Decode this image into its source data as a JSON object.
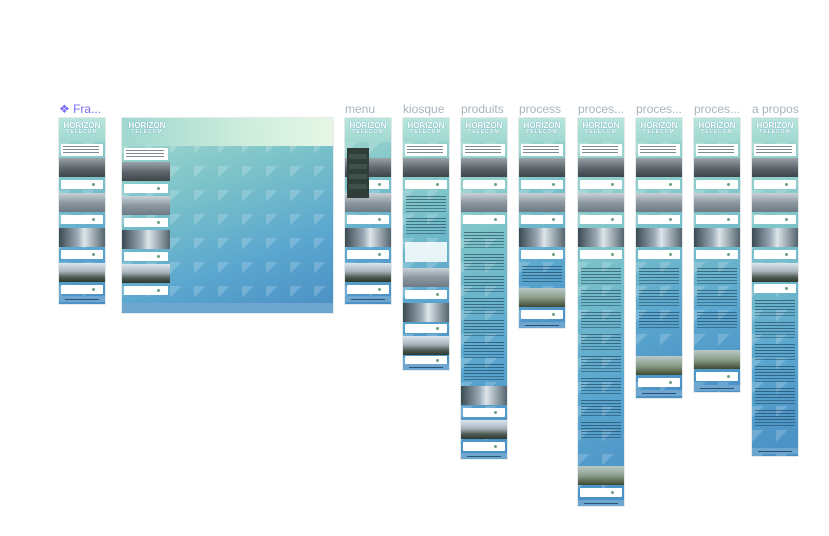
{
  "canvas": {
    "frame_labels": [
      {
        "name": "frames",
        "label": "❖ Fra..."
      },
      {
        "name": "menu",
        "label": "menu"
      },
      {
        "name": "kiosque",
        "label": "kiosque"
      },
      {
        "name": "produits",
        "label": "produits"
      },
      {
        "name": "process",
        "label": "process"
      },
      {
        "name": "process-2",
        "label": "proces..."
      },
      {
        "name": "process-3",
        "label": "proces..."
      },
      {
        "name": "process-4",
        "label": "proces..."
      },
      {
        "name": "a-propos",
        "label": "a propos"
      }
    ]
  },
  "brand": {
    "line1": "HORIZON",
    "line2": "TELECOM"
  },
  "colors": {
    "accent": "#7b6cf6",
    "label": "#a9b3bd",
    "footer": "#6fa6cf",
    "dot": "#6aa17f"
  }
}
